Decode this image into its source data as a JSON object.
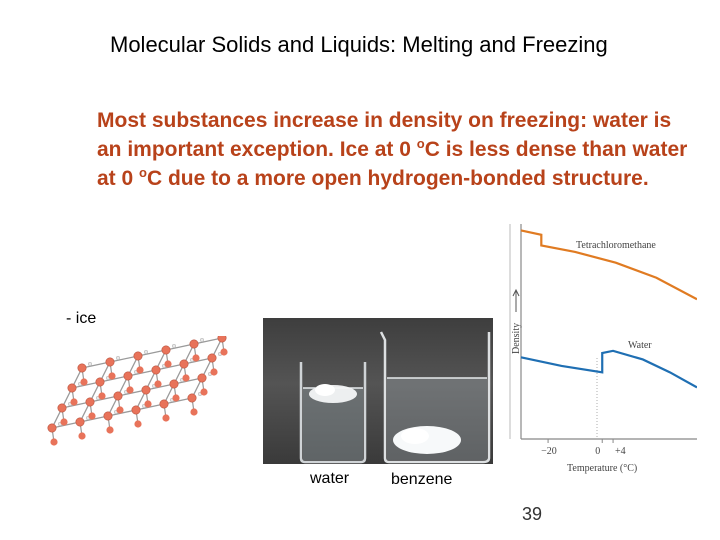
{
  "slide": {
    "title": "Molecular Solids and Liquids: Melting and Freezing",
    "paragraph": {
      "part1": "Most substances increase in density on freezing: water is an important exception. Ice at 0 ",
      "degree1": "o",
      "part2": "C is less dense than water at 0 ",
      "degree2": "o",
      "part3": "C due to a more open hydrogen-bonded structure."
    },
    "ice_label": "- ice",
    "photo_captions": {
      "water": "water",
      "benzene": "benzene"
    },
    "page_number": "39"
  },
  "colors": {
    "body_text": "#b8421a",
    "tetrachloromethane_curve": "#e07b22",
    "water_curve": "#1f6fb3",
    "oxygen_atom": "#e8735a",
    "bond": "#9a9a9a"
  },
  "chart_data": {
    "type": "line",
    "ylabel": "Density",
    "xlabel": "Temperature (°C)",
    "x_ticks": [
      "−20",
      "0",
      "+4"
    ],
    "y_ticks": [],
    "grid": false,
    "series": [
      {
        "name": "Tetrachloromethane",
        "x": [
          -30,
          -22.5,
          -22.5,
          -10,
          5,
          20,
          35
        ],
        "y": [
          0.97,
          0.95,
          0.9,
          0.87,
          0.82,
          0.75,
          0.65
        ]
      },
      {
        "name": "Water",
        "x": [
          -30,
          -15,
          0,
          0,
          4,
          15,
          25,
          35
        ],
        "y": [
          0.38,
          0.34,
          0.31,
          0.4,
          0.41,
          0.37,
          0.31,
          0.24
        ]
      }
    ]
  }
}
